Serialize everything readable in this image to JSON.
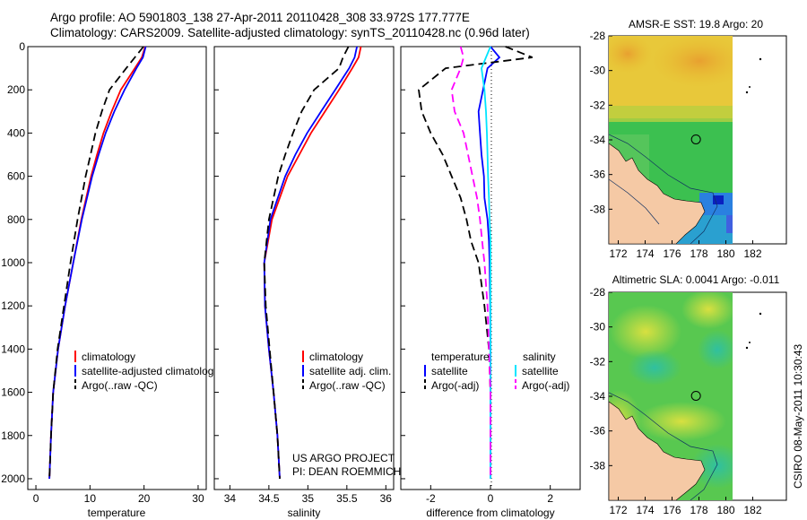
{
  "title": {
    "line1": "Argo profile: AO 5901803_138 27-Apr-2011 20110428_308 33.972S 177.777E",
    "line2": "Climatology: CARS2009. Satellite-adjusted climatology: synTS_20110428.nc (0.96d later)"
  },
  "credit": {
    "project": "US ARGO PROJECT",
    "pi": "PI: DEAN ROEMMICH",
    "stamp": "CSIRO 08-May-2011 10:30:43"
  },
  "colors": {
    "climatology": "#ff0000",
    "satellite": "#0000ff",
    "argo": "#000000",
    "sat_salt": "#00e5ff",
    "argo_salt": "#ff00ff",
    "land": "#f5c9a5"
  },
  "chart_data": [
    {
      "type": "line",
      "name": "temperature-profile",
      "xlabel": "temperature",
      "ylabel": "",
      "xlim": [
        -1.5,
        31.5
      ],
      "ylim": [
        2050,
        0
      ],
      "xticks": [
        0,
        10,
        20,
        30
      ],
      "yticks": [
        0,
        200,
        400,
        600,
        800,
        1000,
        1200,
        1400,
        1600,
        1800,
        2000
      ],
      "y": [
        0,
        50,
        100,
        200,
        300,
        400,
        500,
        600,
        800,
        1000,
        1200,
        1400,
        1600,
        1800,
        2000
      ],
      "series": [
        {
          "name": "climatology",
          "color": "#ff0000",
          "dash": "",
          "values": [
            20.2,
            19.6,
            18.3,
            15.7,
            14.0,
            12.5,
            11.3,
            10.2,
            8.4,
            6.9,
            5.4,
            4.1,
            3.2,
            2.8,
            2.5
          ]
        },
        {
          "name": "satellite-adjusted climatology",
          "color": "#0000ff",
          "dash": "",
          "values": [
            20.3,
            19.8,
            18.6,
            16.4,
            14.5,
            12.9,
            11.6,
            10.4,
            8.5,
            6.9,
            5.4,
            4.1,
            3.2,
            2.8,
            2.5
          ]
        },
        {
          "name": "Argo(..raw -QC)",
          "color": "#000000",
          "dash": "9,5",
          "values": [
            19.9,
            18.3,
            16.7,
            13.6,
            12.2,
            11.0,
            10.1,
            9.2,
            7.7,
            6.4,
            5.2,
            4.0,
            3.2,
            2.8,
            2.5
          ]
        }
      ],
      "legend": [
        "climatology",
        "satellite-adjusted climatology",
        "Argo(..raw -QC)"
      ],
      "legend_position": "lower-right"
    },
    {
      "type": "line",
      "name": "salinity-profile",
      "xlabel": "salinity",
      "ylabel": "",
      "xlim": [
        33.8,
        36.1
      ],
      "ylim": [
        2050,
        0
      ],
      "xticks": [
        34,
        34.5,
        35,
        35.5,
        36
      ],
      "y": [
        0,
        50,
        100,
        200,
        300,
        400,
        500,
        600,
        800,
        1000,
        1200,
        1400,
        1600,
        1800,
        2000
      ],
      "series": [
        {
          "name": "climatology",
          "color": "#ff0000",
          "dash": "",
          "values": [
            35.68,
            35.65,
            35.57,
            35.4,
            35.22,
            35.04,
            34.89,
            34.74,
            34.54,
            34.44,
            34.45,
            34.5,
            34.56,
            34.61,
            34.64
          ]
        },
        {
          "name": "satellite adj. clim.",
          "color": "#0000ff",
          "dash": "",
          "values": [
            35.63,
            35.6,
            35.53,
            35.35,
            35.17,
            34.99,
            34.84,
            34.71,
            34.52,
            34.44,
            34.45,
            34.5,
            34.56,
            34.61,
            34.64
          ]
        },
        {
          "name": "Argo(..raw -QC)",
          "color": "#000000",
          "dash": "9,5",
          "values": [
            35.52,
            35.45,
            35.4,
            35.08,
            34.92,
            34.81,
            34.71,
            34.62,
            34.5,
            34.44,
            34.46,
            34.51,
            34.56,
            34.61,
            34.64
          ]
        }
      ],
      "legend": [
        "climatology",
        "satellite adj. clim.",
        "Argo(..raw -QC)"
      ],
      "legend_position": "lower-right"
    },
    {
      "type": "line",
      "name": "difference-profile",
      "xlabel": "difference from climatology",
      "ylabel": "",
      "xlim": [
        -3.0,
        3.0
      ],
      "ylim": [
        2050,
        0
      ],
      "xticks": [
        -2,
        0,
        2
      ],
      "y": [
        0,
        50,
        100,
        200,
        300,
        400,
        500,
        600,
        700,
        800,
        900,
        1000,
        1200,
        1400,
        1600,
        1800,
        2000
      ],
      "series": [
        {
          "name": "temperature satellite",
          "color": "#0000ff",
          "dash": "",
          "values": [
            0.0,
            0.3,
            -0.1,
            -0.25,
            -0.4,
            -0.35,
            -0.3,
            -0.22,
            -0.2,
            -0.1,
            -0.05,
            -0.03,
            -0.01,
            0.0,
            0.0,
            0.0,
            0.0
          ]
        },
        {
          "name": "temperature Argo(-adj)",
          "color": "#000000",
          "dash": "9,5",
          "values": [
            0.5,
            1.4,
            -1.5,
            -2.4,
            -2.3,
            -2.0,
            -1.6,
            -1.3,
            -1.0,
            -0.8,
            -0.65,
            -0.4,
            -0.2,
            -0.05,
            0.0,
            0.0,
            0.0
          ]
        },
        {
          "name": "salinity satellite",
          "color": "#00e5ff",
          "dash": "",
          "values": [
            0.0,
            -0.15,
            -0.3,
            -0.2,
            -0.15,
            -0.12,
            -0.1,
            -0.08,
            -0.05,
            -0.03,
            0.0,
            0.0,
            0.0,
            0.0,
            0.0,
            0.0,
            0.0
          ]
        },
        {
          "name": "salinity Argo(-adj)",
          "color": "#ff00ff",
          "dash": "9,5",
          "values": [
            -1.0,
            -0.9,
            -1.0,
            -1.3,
            -1.2,
            -0.9,
            -0.75,
            -0.6,
            -0.45,
            -0.35,
            -0.28,
            -0.2,
            -0.1,
            -0.05,
            0.0,
            0.0,
            0.0
          ]
        }
      ],
      "legend_headers": [
        "temperature",
        "salinity"
      ],
      "legend": [
        "satellite",
        "Argo(-adj)",
        "satellite",
        "Argo(-adj)"
      ],
      "legend_position": "lower-center"
    },
    {
      "type": "heatmap",
      "name": "sst-map",
      "title": "AMSR-E SST: 19.8  Argo: 20",
      "xlim": [
        171.3,
        184.5
      ],
      "ylim": [
        -40,
        -28
      ],
      "xticks": [
        172,
        174,
        176,
        178,
        180,
        182
      ],
      "yticks": [
        -28,
        -30,
        -32,
        -34,
        -36,
        -38
      ],
      "marker": {
        "lon": 177.777,
        "lat": -33.972
      }
    },
    {
      "type": "heatmap",
      "name": "sla-map",
      "title": "Altimetric SLA: 0.0041  Argo: -0.011",
      "xlim": [
        171.3,
        184.5
      ],
      "ylim": [
        -40,
        -28
      ],
      "xticks": [
        172,
        174,
        176,
        178,
        180,
        182
      ],
      "yticks": [
        -28,
        -30,
        -32,
        -34,
        -36,
        -38
      ],
      "marker": {
        "lon": 177.777,
        "lat": -33.972
      }
    }
  ]
}
